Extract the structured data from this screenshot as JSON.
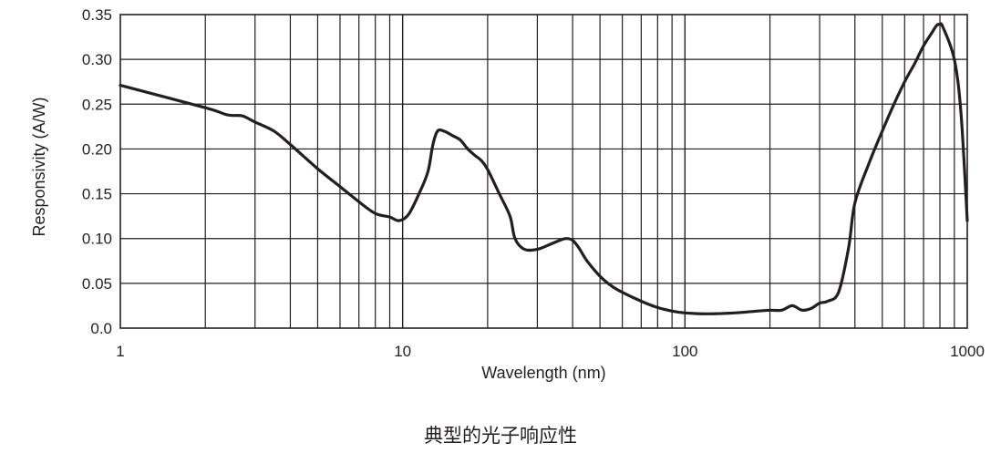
{
  "caption": "典型的光子响应性",
  "chart_data": {
    "type": "line",
    "xlabel": "Wavelength (nm)",
    "ylabel": "Responsivity (A/W)",
    "xscale": "log",
    "xlim": [
      1,
      1000
    ],
    "ylim": [
      0,
      0.35
    ],
    "grid": true,
    "x_tick_labels": [
      "1",
      "10",
      "100",
      "1000"
    ],
    "y_tick_labels": [
      "0.0",
      "0.05",
      "0.10",
      "0.15",
      "0.20",
      "0.25",
      "0.30",
      "0.35"
    ],
    "line_color": "#231f20",
    "series": [
      {
        "x": [
          1,
          2,
          2.4,
          2.7,
          3,
          3.5,
          4,
          5,
          6,
          7,
          8,
          9,
          9.7,
          10.5,
          11.5,
          12.3,
          12.8,
          13.3,
          14,
          15,
          16,
          17,
          18,
          19,
          20,
          22,
          24,
          25,
          27,
          30,
          33,
          36,
          38,
          40,
          42,
          45,
          50,
          55,
          60,
          70,
          80,
          90,
          100,
          120,
          150,
          180,
          200,
          220,
          240,
          260,
          280,
          300,
          320,
          350,
          380,
          400,
          450,
          500,
          550,
          600,
          650,
          700,
          750,
          780,
          800,
          820,
          900,
          950,
          1000
        ],
        "y": [
          0.271,
          0.246,
          0.238,
          0.237,
          0.23,
          0.22,
          0.205,
          0.178,
          0.158,
          0.141,
          0.128,
          0.124,
          0.12,
          0.127,
          0.152,
          0.175,
          0.205,
          0.22,
          0.22,
          0.215,
          0.21,
          0.2,
          0.193,
          0.187,
          0.177,
          0.15,
          0.125,
          0.1,
          0.088,
          0.088,
          0.093,
          0.098,
          0.1,
          0.098,
          0.09,
          0.075,
          0.058,
          0.047,
          0.04,
          0.03,
          0.023,
          0.019,
          0.017,
          0.016,
          0.017,
          0.019,
          0.02,
          0.02,
          0.025,
          0.02,
          0.022,
          0.028,
          0.03,
          0.04,
          0.09,
          0.14,
          0.185,
          0.22,
          0.25,
          0.275,
          0.295,
          0.315,
          0.33,
          0.338,
          0.339,
          0.336,
          0.3,
          0.24,
          0.12
        ]
      }
    ]
  }
}
